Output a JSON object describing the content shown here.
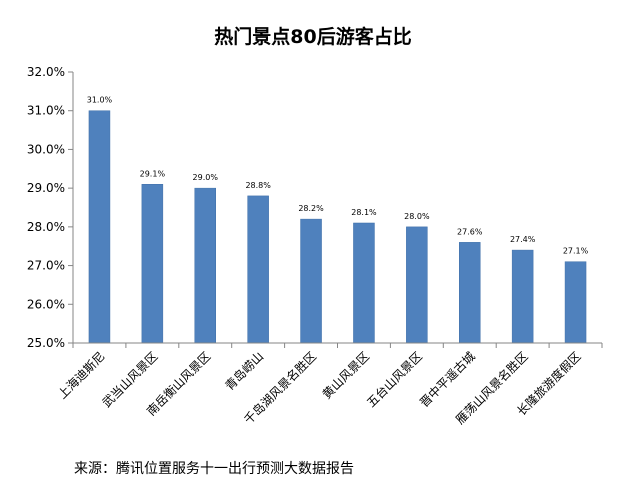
{
  "chart_data": {
    "type": "bar",
    "title": "热门景点80后游客占比",
    "categories": [
      "上海迪斯尼",
      "武当山风景区",
      "南岳衡山风景区",
      "青岛崂山",
      "千岛湖风景名胜区",
      "黄山风景区",
      "五台山风景区",
      "晋中平遥古城",
      "雁荡山风景名胜区",
      "长隆旅游度假区"
    ],
    "values": [
      31.0,
      29.1,
      29.0,
      28.8,
      28.2,
      28.1,
      28.0,
      27.6,
      27.4,
      27.1
    ],
    "data_labels": [
      "31.0%",
      "29.1%",
      "29.0%",
      "28.8%",
      "28.2%",
      "28.1%",
      "28.0%",
      "27.6%",
      "27.4%",
      "27.1%"
    ],
    "yticks": [
      25,
      26,
      27,
      28,
      29,
      30,
      31,
      32
    ],
    "ytick_labels": [
      "25.0%",
      "26.0%",
      "27.0%",
      "28.0%",
      "29.0%",
      "30.0%",
      "31.0%",
      "32.0%"
    ],
    "ylim": [
      25,
      32
    ],
    "xlabel": "",
    "ylabel": "",
    "grid": false,
    "legend": "none",
    "colors": {
      "bar": "#4f81bd",
      "bar_edge": "#3f6fa8",
      "axis": "#868686"
    }
  },
  "source": "来源：腾讯位置服务十一出行预测大数据报告"
}
